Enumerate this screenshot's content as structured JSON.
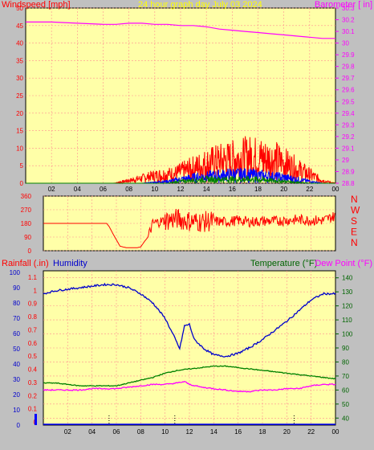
{
  "chart_data": [
    {
      "type": "line",
      "title": "24 hour graph day   July 03 2024",
      "left_axis": {
        "label": "Windspeed [mph]",
        "range": [
          0,
          50
        ],
        "ticks": [
          0,
          5,
          10,
          15,
          20,
          25,
          30,
          35,
          40,
          45,
          50
        ]
      },
      "right_axis": {
        "label": "Barometer [ in]",
        "range": [
          28.8,
          30.3
        ],
        "ticks": [
          "28.8",
          "28.9",
          "29",
          "29.1",
          "29.2",
          "29.3",
          "29.4",
          "29.5",
          "29.6",
          "29.7",
          "29.8",
          "29.9",
          "30",
          "30.1",
          "30.2",
          "30.3"
        ]
      },
      "x_ticks": [
        "02",
        "04",
        "06",
        "08",
        "10",
        "12",
        "14",
        "16",
        "18",
        "20",
        "22",
        "00"
      ],
      "x_range_hours": [
        0,
        24
      ],
      "grid": true,
      "series": [
        {
          "role": "barometer",
          "color": "#ff00ff",
          "x": [
            0,
            2,
            4,
            6,
            7,
            8,
            9,
            10,
            11,
            12,
            13,
            14,
            15,
            16,
            17,
            18,
            19,
            20,
            21,
            22,
            23,
            24
          ],
          "y": [
            30.18,
            30.18,
            30.17,
            30.16,
            30.16,
            30.17,
            30.17,
            30.16,
            30.16,
            30.15,
            30.15,
            30.14,
            30.12,
            30.11,
            30.1,
            30.09,
            30.08,
            30.07,
            30.06,
            30.05,
            30.04,
            30.04
          ]
        },
        {
          "role": "wind_gust",
          "color": "#ff0000",
          "envelope_x": [
            0,
            6.8,
            8.5,
            10,
            11.5,
            12.5,
            13.5,
            14.5,
            15.5,
            16.5,
            17.5,
            18.5,
            19.5,
            20.5,
            21.5,
            22.5,
            23.2,
            24
          ],
          "envelope_y": [
            0,
            0,
            2,
            4,
            5,
            7,
            9,
            11,
            12,
            13,
            14,
            13,
            12,
            9,
            6,
            3,
            1,
            0
          ]
        },
        {
          "role": "wind_avg",
          "color": "#0000ff",
          "envelope_x": [
            0,
            9,
            11,
            12,
            13,
            14,
            15,
            16,
            17,
            18,
            19,
            20,
            21,
            22,
            23,
            24
          ],
          "envelope_y": [
            0,
            0,
            1,
            2,
            3,
            3.5,
            4,
            4.5,
            4.5,
            4,
            3.5,
            3,
            2,
            1,
            0,
            0
          ]
        },
        {
          "role": "wind_low",
          "color": "#008000",
          "envelope_x": [
            0,
            11,
            12,
            14,
            16,
            18,
            20,
            22,
            24
          ],
          "envelope_y": [
            0,
            0,
            1,
            2,
            2,
            2,
            1,
            0,
            0
          ]
        }
      ]
    },
    {
      "type": "line",
      "left_axis": {
        "range": [
          0,
          360
        ],
        "ticks": [
          0,
          90,
          180,
          270,
          360
        ]
      },
      "right_labels": [
        "N",
        "W",
        "S",
        "E",
        "N"
      ],
      "grid": true,
      "series": [
        {
          "role": "wind_direction",
          "color": "#ff0000",
          "x": [
            0,
            5.2,
            5.4,
            5.8,
            6.3,
            6.8,
            7.0,
            7.4,
            7.7,
            8.0,
            8.3,
            8.6,
            9,
            10,
            11,
            12,
            13,
            14,
            15,
            16,
            17,
            18,
            19,
            20,
            21,
            22,
            23,
            24
          ],
          "y": [
            180,
            180,
            160,
            100,
            30,
            20,
            20,
            20,
            20,
            25,
            60,
            90,
            180,
            200,
            210,
            195,
            190,
            195,
            190,
            200,
            190,
            195,
            195,
            200,
            205,
            200,
            200,
            230
          ]
        }
      ]
    },
    {
      "type": "line",
      "left_axis": {
        "label_primary": "Rainfall (.in)",
        "label_secondary": "Humidity",
        "rain_ticks": [
          "0",
          "0.1",
          "0.2",
          "0.3",
          "0.4",
          "0.5",
          "0.6",
          "0.7",
          "0.8",
          "0.9",
          "1",
          "1.1"
        ],
        "humidity_ticks": [
          0,
          10,
          20,
          30,
          40,
          50,
          60,
          70,
          80,
          90,
          100
        ]
      },
      "right_axis": {
        "label_primary": "Temperature (°F)",
        "label_secondary": "Dew Point (°F)",
        "range": [
          35,
          145
        ],
        "ticks": [
          40,
          50,
          60,
          70,
          80,
          90,
          100,
          110,
          120,
          130,
          140
        ]
      },
      "x_ticks": [
        "02",
        "04",
        "06",
        "08",
        "10",
        "12",
        "14",
        "16",
        "18",
        "20",
        "22",
        "00"
      ],
      "grid": true,
      "series": [
        {
          "role": "humidity",
          "color": "#0000cc",
          "x": [
            0,
            1,
            2,
            3,
            4,
            5,
            6,
            7,
            8,
            9,
            10,
            10.8,
            11.2,
            11.6,
            12,
            12.4,
            12.8,
            13.2,
            14,
            15,
            16,
            17,
            18,
            19,
            20,
            21,
            22,
            23,
            24
          ],
          "y": [
            86,
            88,
            89,
            90,
            91,
            92,
            92,
            90,
            86,
            80,
            70,
            57,
            50,
            65,
            66,
            56,
            53,
            50,
            46,
            45,
            47,
            51,
            56,
            62,
            68,
            75,
            82,
            86,
            86
          ]
        },
        {
          "role": "temperature",
          "color": "#008000",
          "x": [
            0,
            1,
            2,
            3,
            4,
            5,
            6,
            7,
            8,
            9,
            10,
            11,
            12,
            13,
            14,
            15,
            16,
            17,
            18,
            19,
            20,
            21,
            22,
            23,
            24
          ],
          "y": [
            65,
            65,
            64,
            63,
            63,
            63,
            63,
            65,
            67,
            69,
            72,
            74,
            75,
            76,
            77,
            77,
            76,
            75,
            74,
            73,
            72,
            71,
            70,
            69,
            68
          ]
        },
        {
          "role": "dew_point",
          "color": "#ff00ff",
          "x": [
            0,
            1,
            2,
            3,
            4,
            5,
            6,
            7,
            8,
            9,
            10,
            11,
            11.6,
            12,
            13,
            14,
            15,
            16,
            17,
            18,
            19,
            20,
            21,
            22,
            23,
            24
          ],
          "y": [
            60,
            60,
            60,
            60,
            61,
            61,
            61,
            62,
            63,
            64,
            64,
            65,
            66,
            64,
            62,
            61,
            60,
            59,
            59,
            60,
            60,
            61,
            61,
            63,
            64,
            64
          ]
        },
        {
          "role": "rainfall",
          "color": "#0000ff",
          "x": [
            0,
            24
          ],
          "y": [
            0,
            0
          ]
        }
      ],
      "markers_x": [
        5.4,
        10.8,
        20.6
      ]
    }
  ]
}
